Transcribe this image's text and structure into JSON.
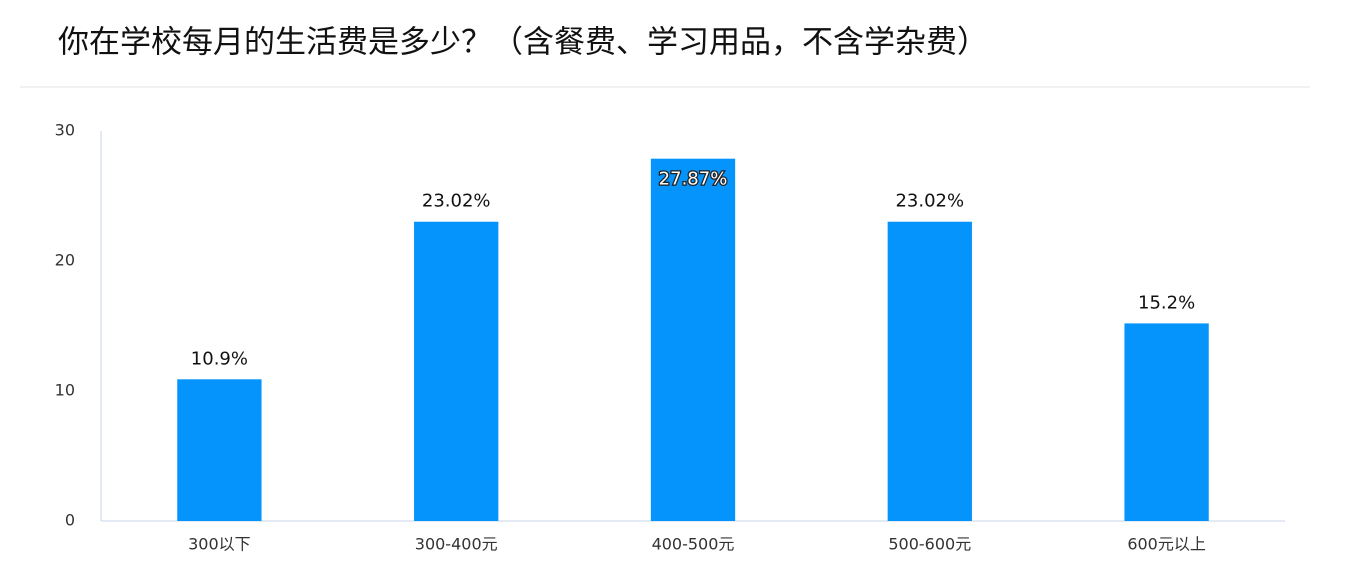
{
  "chart_data": {
    "type": "bar",
    "title": "你在学校每月的生活费是多少？（含餐费、学习用品，不含学杂费）",
    "categories": [
      "300以下",
      "300-400元",
      "400-500元",
      "500-600元",
      "600元以上"
    ],
    "values": [
      10.9,
      23.02,
      27.87,
      23.02,
      15.2
    ],
    "value_labels": [
      "10.9%",
      "23.02%",
      "27.87%",
      "23.02%",
      "15.2%"
    ],
    "color": "#0593fc",
    "ylim": [
      0,
      30
    ],
    "yticks": [
      0,
      10,
      20,
      30
    ],
    "grid": false
  }
}
